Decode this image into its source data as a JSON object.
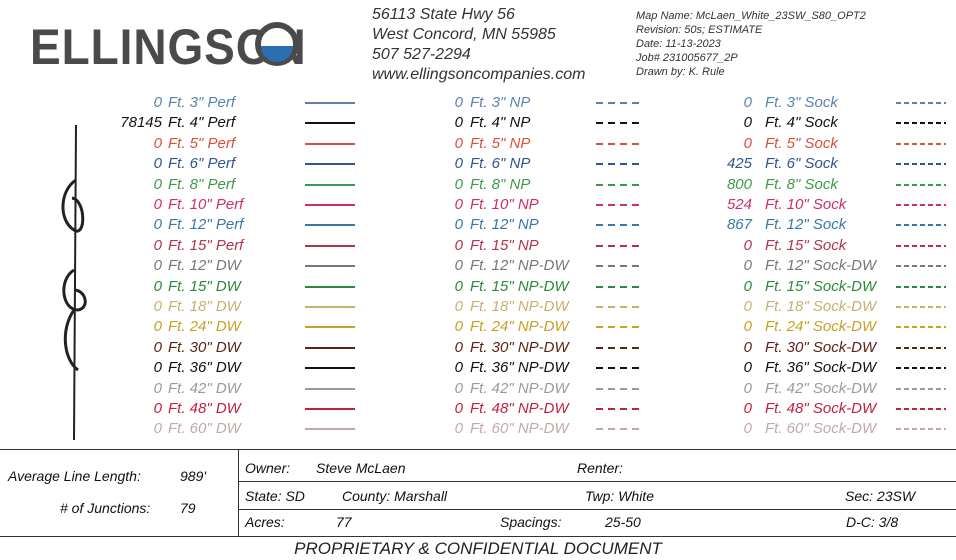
{
  "header": {
    "logo": "ELLINGSON",
    "address": [
      "56113 State Hwy 56",
      "West Concord, MN 55985",
      "507 527-2294",
      "www.ellingsoncompanies.com"
    ],
    "map_info": [
      "Map Name:  McLaen_White_23SW_S80_OPT2",
      "Revision:  50s; ESTIMATE",
      "Date:  11-13-2023",
      "Job# 231005677_2P",
      "Drawn by:    K. Rule"
    ]
  },
  "legend": {
    "rows": [
      {
        "color": "#5a82ad",
        "cells": [
          {
            "qty": "0",
            "label": "Ft. 3\" Perf"
          },
          {
            "qty": "0",
            "label": "Ft. 3\" NP"
          },
          {
            "qty": "0",
            "label": "Ft. 3\" Sock"
          }
        ]
      },
      {
        "color": "#111111",
        "cells": [
          {
            "qty": "78145",
            "label": "Ft. 4\" Perf"
          },
          {
            "qty": "0",
            "label": "Ft. 4\" NP"
          },
          {
            "qty": "0",
            "label": "Ft. 4\" Sock"
          }
        ]
      },
      {
        "color": "#d9503c",
        "cells": [
          {
            "qty": "0",
            "label": "Ft. 5\" Perf"
          },
          {
            "qty": "0",
            "label": "Ft. 5\" NP"
          },
          {
            "qty": "0",
            "label": "Ft. 5\" Sock"
          }
        ]
      },
      {
        "color": "#2f5590",
        "cells": [
          {
            "qty": "0",
            "label": "Ft. 6\" Perf"
          },
          {
            "qty": "0",
            "label": "Ft. 6\" NP"
          },
          {
            "qty": "425",
            "label": "Ft. 6\" Sock"
          }
        ]
      },
      {
        "color": "#3d9a4a",
        "cells": [
          {
            "qty": "0",
            "label": "Ft. 8\" Perf"
          },
          {
            "qty": "0",
            "label": "Ft. 8\" NP"
          },
          {
            "qty": "800",
            "label": "Ft. 8\" Sock"
          }
        ]
      },
      {
        "color": "#d02e66",
        "cells": [
          {
            "qty": "0",
            "label": "Ft. 10\" Perf"
          },
          {
            "qty": "0",
            "label": "Ft. 10\" NP"
          },
          {
            "qty": "524",
            "label": "Ft. 10\" Sock"
          }
        ]
      },
      {
        "color": "#3878a8",
        "cells": [
          {
            "qty": "0",
            "label": "Ft. 12\" Perf"
          },
          {
            "qty": "0",
            "label": "Ft. 12\" NP"
          },
          {
            "qty": "867",
            "label": "Ft. 12\" Sock"
          }
        ]
      },
      {
        "color": "#b0344e",
        "cells": [
          {
            "qty": "0",
            "label": "Ft. 15\" Perf"
          },
          {
            "qty": "0",
            "label": "Ft. 15\" NP"
          },
          {
            "qty": "0",
            "label": "Ft. 15\" Sock"
          }
        ]
      },
      {
        "color": "#777777",
        "cells": [
          {
            "qty": "0",
            "label": "Ft. 12\" DW"
          },
          {
            "qty": "0",
            "label": "Ft. 12\" NP-DW"
          },
          {
            "qty": "0",
            "label": "Ft. 12\" Sock-DW"
          }
        ]
      },
      {
        "color": "#2a8a3a",
        "cells": [
          {
            "qty": "0",
            "label": "Ft. 15\" DW"
          },
          {
            "qty": "0",
            "label": "Ft. 15\" NP-DW"
          },
          {
            "qty": "0",
            "label": "Ft. 15\" Sock-DW"
          }
        ]
      },
      {
        "color": "#c8b070",
        "cells": [
          {
            "qty": "0",
            "label": "Ft. 18\" DW"
          },
          {
            "qty": "0",
            "label": "Ft. 18\" NP-DW"
          },
          {
            "qty": "0",
            "label": "Ft. 18\" Sock-DW"
          }
        ]
      },
      {
        "color": "#c9a024",
        "cells": [
          {
            "qty": "0",
            "label": "Ft. 24\" DW"
          },
          {
            "qty": "0",
            "label": "Ft. 24\" NP-DW"
          },
          {
            "qty": "0",
            "label": "Ft. 24\" Sock-DW"
          }
        ]
      },
      {
        "color": "#5a2418",
        "cells": [
          {
            "qty": "0",
            "label": "Ft. 30\" DW"
          },
          {
            "qty": "0",
            "label": "Ft. 30\" NP-DW"
          },
          {
            "qty": "0",
            "label": "Ft. 30\" Sock-DW"
          }
        ]
      },
      {
        "color": "#111111",
        "cells": [
          {
            "qty": "0",
            "label": "Ft. 36\" DW"
          },
          {
            "qty": "0",
            "label": "Ft. 36\" NP-DW"
          },
          {
            "qty": "0",
            "label": "Ft. 36\" Sock-DW"
          }
        ]
      },
      {
        "color": "#9a9a9a",
        "cells": [
          {
            "qty": "0",
            "label": "Ft. 42\" DW"
          },
          {
            "qty": "0",
            "label": "Ft. 42\" NP-DW"
          },
          {
            "qty": "0",
            "label": "Ft. 42\" Sock-DW"
          }
        ]
      },
      {
        "color": "#c2203e",
        "cells": [
          {
            "qty": "0",
            "label": "Ft. 48\" DW"
          },
          {
            "qty": "0",
            "label": "Ft. 48\" NP-DW"
          },
          {
            "qty": "0",
            "label": "Ft. 48\" Sock-DW"
          }
        ]
      },
      {
        "color": "#c4a8a8",
        "cells": [
          {
            "qty": "0",
            "label": "Ft. 60\" DW"
          },
          {
            "qty": "0",
            "label": "Ft. 60\" NP-DW"
          },
          {
            "qty": "0",
            "label": "Ft. 60\" Sock-DW"
          }
        ]
      }
    ]
  },
  "footer": {
    "avg_line_length": {
      "label": "Average Line Length:",
      "value": "989'"
    },
    "junctions": {
      "label": "# of Junctions:",
      "value": "79"
    },
    "owner": {
      "label": "Owner:",
      "value": "Steve McLaen"
    },
    "renter": {
      "label": "Renter:"
    },
    "state": "State:  SD",
    "county": "County:  Marshall",
    "twp": "Twp: White",
    "sec": "Sec:  23SW",
    "acres": {
      "label": "Acres:",
      "value": "77"
    },
    "spacings": {
      "label": "Spacings:",
      "value": "25-50"
    },
    "dc": "D-C:  3/8",
    "notice": "PROPRIETARY & CONFIDENTIAL DOCUMENT"
  }
}
